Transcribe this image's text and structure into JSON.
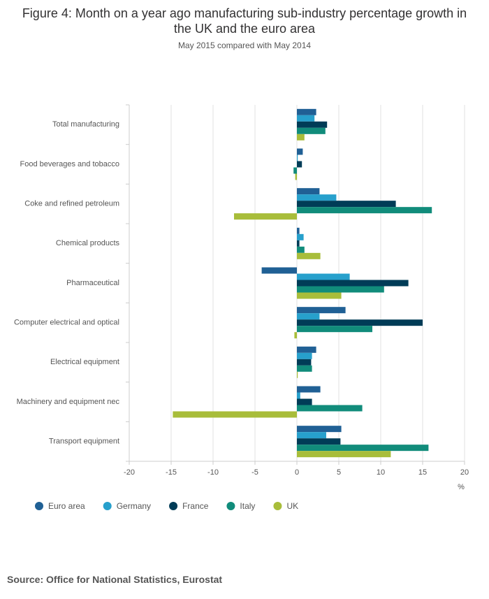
{
  "chart_data": {
    "type": "hbar",
    "title": "Figure 4: Month on a year ago manufacturing sub-industry percentage growth in the UK and the euro area",
    "subtitle": "May 2015 compared with May 2014",
    "x_axis_label": "%",
    "source": "Source: Office for National Statistics, Eurostat",
    "categories": [
      "Total manufacturing",
      "Food beverages and tobacco",
      "Coke and refined petroleum",
      "Chemical products",
      "Pharmaceutical",
      "Computer electrical and optical",
      "Electrical equipment",
      "Machinery and equipment nec",
      "Transport equipment"
    ],
    "series": [
      {
        "name": "Euro area",
        "color": "#206095",
        "values": [
          2.3,
          0.7,
          2.7,
          0.3,
          -4.2,
          5.8,
          2.3,
          2.8,
          5.3
        ]
      },
      {
        "name": "Germany",
        "color": "#27a0cc",
        "values": [
          2.1,
          0.1,
          4.7,
          0.8,
          6.3,
          2.7,
          1.8,
          0.4,
          3.5
        ]
      },
      {
        "name": "France",
        "color": "#003c57",
        "values": [
          3.6,
          0.6,
          11.8,
          0.3,
          13.3,
          15.0,
          1.7,
          1.8,
          5.2
        ]
      },
      {
        "name": "Italy",
        "color": "#118c7b",
        "values": [
          3.4,
          -0.4,
          16.1,
          0.9,
          10.4,
          9.0,
          1.8,
          7.8,
          15.7
        ]
      },
      {
        "name": "UK",
        "color": "#a8bd3a",
        "values": [
          0.9,
          -0.2,
          -7.5,
          2.8,
          5.3,
          -0.3,
          0.1,
          -14.8,
          11.2
        ]
      }
    ],
    "xlim": [
      -20,
      20
    ],
    "xticks": [
      -20,
      -15,
      -10,
      -5,
      0,
      5,
      10,
      15,
      20
    ],
    "grid": true
  }
}
